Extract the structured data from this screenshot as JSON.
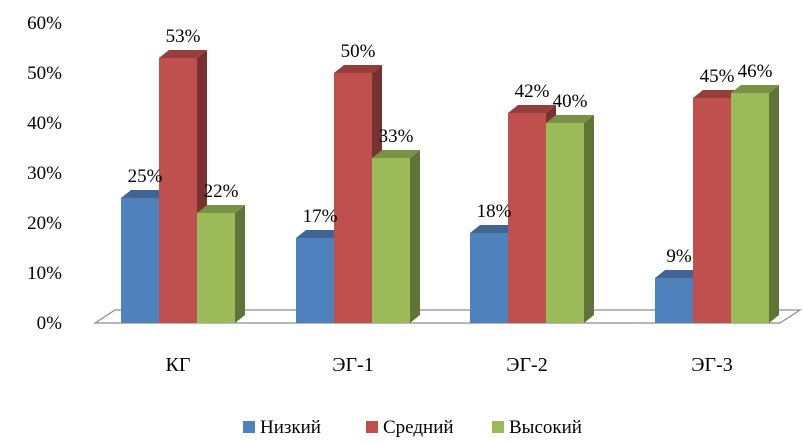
{
  "chart_data": {
    "type": "bar",
    "three_d": true,
    "categories": [
      "КГ",
      "ЭГ-1",
      "ЭГ-2",
      "ЭГ-3"
    ],
    "series": [
      {
        "name": "Низкий",
        "values": [
          25,
          17,
          18,
          9
        ],
        "labels": [
          "25%",
          "17%",
          "18%",
          "9%"
        ],
        "color": "#4F81BD"
      },
      {
        "name": "Средний",
        "values": [
          53,
          50,
          42,
          45
        ],
        "labels": [
          "53%",
          "50%",
          "42%",
          "45%"
        ],
        "color": "#C0504D"
      },
      {
        "name": "Высокий",
        "values": [
          22,
          33,
          40,
          46
        ],
        "labels": [
          "22%",
          "33%",
          "40%",
          "46%"
        ],
        "color": "#9BBB59"
      }
    ],
    "yticks": [
      0,
      10,
      20,
      30,
      40,
      50,
      60
    ],
    "ytick_labels": [
      "0%",
      "10%",
      "20%",
      "30%",
      "40%",
      "50%",
      "60%"
    ],
    "ylim": [
      0,
      60
    ],
    "grid": false,
    "legend_position": "bottom"
  }
}
